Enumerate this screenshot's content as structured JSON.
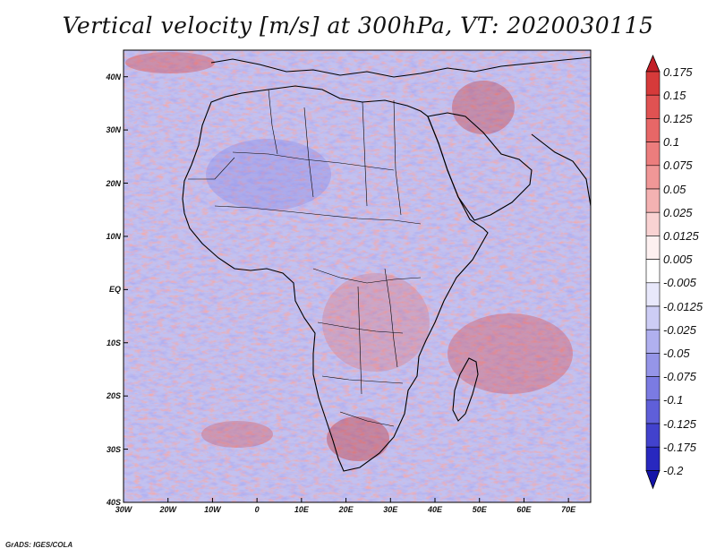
{
  "title": "Vertical velocity [m/s] at 300hPa, VT: 2020030115",
  "credit": "GrADS: IGES/COLA",
  "map": {
    "lon_labels": [
      "30W",
      "20W",
      "10W",
      "0",
      "10E",
      "20E",
      "30E",
      "40E",
      "50E",
      "60E",
      "70E"
    ],
    "lat_labels": [
      "40N",
      "30N",
      "20N",
      "10N",
      "EQ",
      "10S",
      "20S",
      "30S",
      "40S"
    ],
    "lon_range": [
      -30,
      75
    ],
    "lat_range": [
      -40,
      45
    ],
    "colors": {
      "sink": "#6f6fe0",
      "rise": "#e06a6a",
      "neutral": "#f4f0f6",
      "border": "#000000"
    }
  },
  "colorbar": {
    "levels": [
      "0.175",
      "0.15",
      "0.125",
      "0.1",
      "0.075",
      "0.05",
      "0.025",
      "0.0125",
      "0.005",
      "-0.005",
      "-0.0125",
      "-0.025",
      "-0.05",
      "-0.075",
      "-0.1",
      "-0.125",
      "-0.175",
      "-0.2"
    ],
    "colors": [
      "#c21f27",
      "#d63a3a",
      "#e05252",
      "#e76767",
      "#ec7d7d",
      "#f09797",
      "#f4b2b2",
      "#f9d2d2",
      "#fdf0f0",
      "#ffffff",
      "#e8e8fb",
      "#cdcdf5",
      "#b0b0ef",
      "#9595e8",
      "#7b7be2",
      "#5f5fd9",
      "#4242cd",
      "#2828bf",
      "#1414a8"
    ]
  }
}
